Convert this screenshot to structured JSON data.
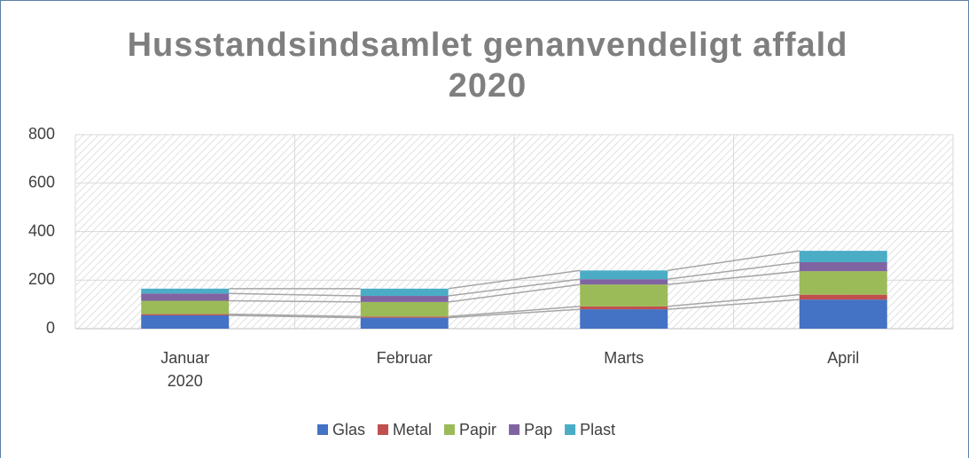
{
  "chart_data": {
    "type": "stacked_bar",
    "title": "Husstandsindsamlet genanvendeligt affald 2020",
    "categories": [
      "Januar 2020",
      "Februar",
      "Marts",
      "April"
    ],
    "series": [
      {
        "name": "Glas",
        "color": "#4472c4",
        "values": [
          55,
          45,
          80,
          120
        ]
      },
      {
        "name": "Metal",
        "color": "#c0504d",
        "values": [
          5,
          5,
          12,
          20
        ]
      },
      {
        "name": "Papir",
        "color": "#9bbb59",
        "values": [
          55,
          60,
          90,
          97
        ]
      },
      {
        "name": "Pap",
        "color": "#8064a2",
        "values": [
          30,
          25,
          22,
          37
        ]
      },
      {
        "name": "Plast",
        "color": "#4bacc6",
        "values": [
          20,
          30,
          36,
          47
        ]
      }
    ],
    "ylim": [
      0,
      800
    ],
    "yticks": [
      0,
      200,
      400,
      600,
      800
    ],
    "grid": true,
    "legend": "bottom"
  }
}
